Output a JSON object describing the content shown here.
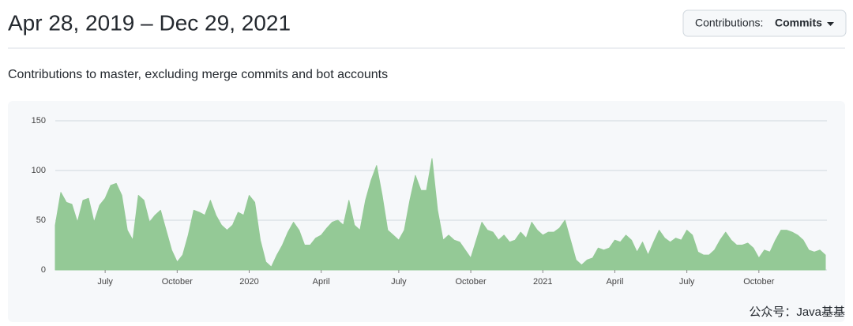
{
  "header": {
    "title": "Apr 28, 2019 – Dec 29, 2021",
    "dropdown_label": "Contributions:",
    "dropdown_value": "Commits"
  },
  "subtitle": "Contributions to master, excluding merge commits and bot accounts",
  "watermark": "公众号：Java基基",
  "chart_data": {
    "type": "area",
    "color": "#94c996",
    "grid": true,
    "ylim": [
      0,
      150
    ],
    "yticks": [
      0,
      50,
      100,
      150
    ],
    "categories": [
      null,
      null,
      null,
      null,
      null,
      null,
      null,
      null,
      null,
      "July",
      null,
      null,
      null,
      null,
      null,
      null,
      null,
      null,
      null,
      null,
      null,
      null,
      "October",
      null,
      null,
      null,
      null,
      null,
      null,
      null,
      null,
      null,
      null,
      null,
      null,
      "2020",
      null,
      null,
      null,
      null,
      null,
      null,
      null,
      null,
      null,
      null,
      null,
      null,
      "April",
      null,
      null,
      null,
      null,
      null,
      null,
      null,
      null,
      null,
      null,
      null,
      null,
      null,
      "July",
      null,
      null,
      null,
      null,
      null,
      null,
      null,
      null,
      null,
      null,
      null,
      null,
      "October",
      null,
      null,
      null,
      null,
      null,
      null,
      null,
      null,
      null,
      null,
      null,
      null,
      "2021",
      null,
      null,
      null,
      null,
      null,
      null,
      null,
      null,
      null,
      null,
      null,
      null,
      "April",
      null,
      null,
      null,
      null,
      null,
      null,
      null,
      null,
      null,
      null,
      null,
      null,
      "July",
      null,
      null,
      null,
      null,
      null,
      null,
      null,
      null,
      null,
      null,
      null,
      null,
      "October",
      null,
      null,
      null,
      null,
      null,
      null,
      null,
      null,
      null,
      null,
      null,
      null
    ],
    "values": [
      45,
      78,
      68,
      66,
      48,
      70,
      72,
      48,
      65,
      72,
      85,
      87,
      75,
      40,
      30,
      75,
      70,
      48,
      55,
      60,
      40,
      20,
      8,
      15,
      35,
      60,
      58,
      55,
      70,
      55,
      45,
      40,
      45,
      58,
      55,
      75,
      68,
      30,
      8,
      3,
      15,
      25,
      38,
      48,
      40,
      25,
      25,
      32,
      35,
      42,
      48,
      50,
      45,
      70,
      45,
      40,
      70,
      90,
      105,
      75,
      40,
      35,
      30,
      40,
      70,
      95,
      80,
      80,
      112,
      60,
      30,
      35,
      30,
      28,
      20,
      12,
      30,
      48,
      40,
      38,
      30,
      35,
      28,
      30,
      38,
      32,
      48,
      40,
      35,
      38,
      38,
      42,
      50,
      30,
      10,
      5,
      10,
      12,
      22,
      20,
      22,
      30,
      28,
      35,
      30,
      18,
      28,
      15,
      28,
      40,
      32,
      28,
      32,
      30,
      40,
      35,
      18,
      15,
      15,
      20,
      30,
      38,
      30,
      25,
      25,
      27,
      22,
      12,
      20,
      18,
      30,
      40,
      40,
      38,
      35,
      30,
      20,
      18,
      20,
      15
    ]
  }
}
